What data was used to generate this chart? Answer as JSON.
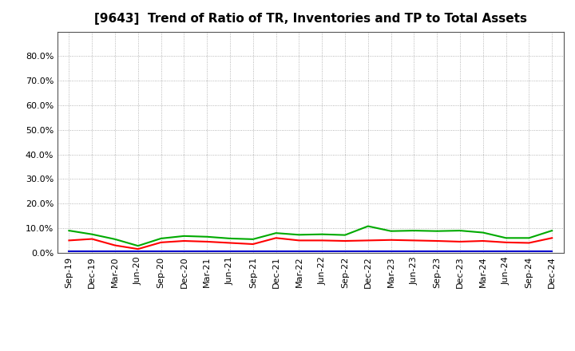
{
  "title": "[9643]  Trend of Ratio of TR, Inventories and TP to Total Assets",
  "x_labels": [
    "Sep-19",
    "Dec-19",
    "Mar-20",
    "Jun-20",
    "Sep-20",
    "Dec-20",
    "Mar-21",
    "Jun-21",
    "Sep-21",
    "Dec-21",
    "Mar-22",
    "Jun-22",
    "Sep-22",
    "Dec-22",
    "Mar-23",
    "Jun-23",
    "Sep-23",
    "Dec-23",
    "Mar-24",
    "Jun-24",
    "Sep-24",
    "Dec-24"
  ],
  "trade_receivables": [
    0.05,
    0.056,
    0.03,
    0.015,
    0.042,
    0.048,
    0.045,
    0.04,
    0.035,
    0.06,
    0.05,
    0.05,
    0.048,
    0.05,
    0.052,
    0.05,
    0.048,
    0.045,
    0.048,
    0.042,
    0.04,
    0.06
  ],
  "inventories": [
    0.005,
    0.005,
    0.005,
    0.005,
    0.005,
    0.005,
    0.005,
    0.005,
    0.005,
    0.005,
    0.005,
    0.005,
    0.005,
    0.005,
    0.005,
    0.005,
    0.005,
    0.005,
    0.005,
    0.005,
    0.005,
    0.005
  ],
  "trade_payables": [
    0.09,
    0.075,
    0.055,
    0.028,
    0.058,
    0.068,
    0.065,
    0.058,
    0.055,
    0.08,
    0.073,
    0.075,
    0.072,
    0.108,
    0.088,
    0.09,
    0.088,
    0.09,
    0.082,
    0.06,
    0.06,
    0.09
  ],
  "tr_color": "#ff0000",
  "inv_color": "#0000cc",
  "tp_color": "#00aa00",
  "ylim_max": 0.9,
  "yticks": [
    0.0,
    0.1,
    0.2,
    0.3,
    0.4,
    0.5,
    0.6,
    0.7,
    0.8
  ],
  "background_color": "#ffffff",
  "plot_bg_color": "#ffffff",
  "grid_color": "#999999",
  "line_width": 1.5,
  "title_fontsize": 11,
  "tick_fontsize": 8,
  "legend_fontsize": 9
}
